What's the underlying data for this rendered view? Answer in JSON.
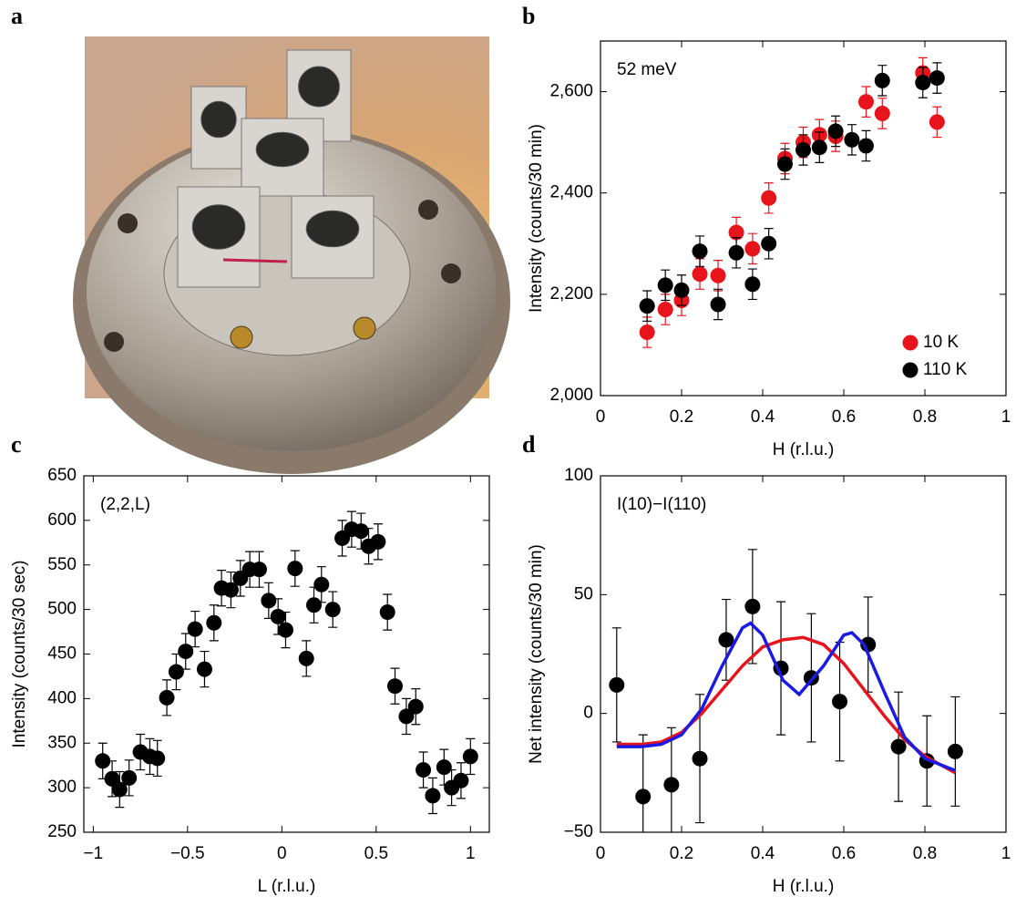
{
  "chart_data": [
    {
      "type": "image",
      "label": "a"
    },
    {
      "type": "scatter",
      "label": "b",
      "annotation": "52 meV",
      "xlabel": "H  (r.l.u.)",
      "ylabel": "Intensity (counts/30 min)",
      "xlim": [
        0,
        1
      ],
      "xticks": [
        0,
        0.2,
        0.4,
        0.6,
        0.8,
        1
      ],
      "ylim": [
        2000,
        2700
      ],
      "yticks": [
        {
          "value": 2000,
          "label": "2,000"
        },
        {
          "value": 2200,
          "label": "2,200"
        },
        {
          "value": 2400,
          "label": "2,400"
        },
        {
          "value": 2600,
          "label": "2,600"
        }
      ],
      "legend": "lower right",
      "series": [
        {
          "name": "10 K",
          "color": "#e8141b",
          "x": [
            0.115,
            0.16,
            0.2,
            0.245,
            0.29,
            0.335,
            0.375,
            0.415,
            0.455,
            0.5,
            0.54,
            0.58,
            0.655,
            0.695,
            0.795,
            0.83
          ],
          "values": [
            2125,
            2170,
            2188,
            2240,
            2237,
            2322,
            2290,
            2390,
            2468,
            2500,
            2515,
            2512,
            2580,
            2557,
            2637,
            2540
          ],
          "errors": [
            30,
            30,
            30,
            30,
            30,
            30,
            30,
            30,
            30,
            30,
            30,
            30,
            30,
            30,
            30,
            30
          ]
        },
        {
          "name": "110 K",
          "color": "#000000",
          "x": [
            0.115,
            0.16,
            0.2,
            0.245,
            0.29,
            0.335,
            0.375,
            0.415,
            0.455,
            0.5,
            0.54,
            0.58,
            0.62,
            0.655,
            0.695,
            0.795,
            0.83
          ],
          "values": [
            2177,
            2218,
            2208,
            2285,
            2180,
            2282,
            2220,
            2300,
            2457,
            2485,
            2490,
            2522,
            2505,
            2493,
            2622,
            2618,
            2627
          ],
          "errors": [
            30,
            30,
            30,
            30,
            30,
            30,
            30,
            30,
            30,
            30,
            30,
            30,
            30,
            30,
            30,
            30,
            30
          ]
        }
      ]
    },
    {
      "type": "scatter",
      "label": "c",
      "annotation": "(2,2,L)",
      "xlabel": "L    (r.l.u.)",
      "ylabel": "Intensity (counts/30 sec)",
      "xlim": [
        -1.05,
        1.1
      ],
      "xticks": [
        {
          "value": -1,
          "label": "−1"
        },
        {
          "value": -0.5,
          "label": "−0.5"
        },
        0,
        0.5,
        1
      ],
      "ylim": [
        250,
        650
      ],
      "yticks": [
        250,
        300,
        350,
        400,
        450,
        500,
        550,
        600,
        650
      ],
      "series": [
        {
          "color": "#000000",
          "x": [
            -0.95,
            -0.9,
            -0.86,
            -0.81,
            -0.75,
            -0.7,
            -0.66,
            -0.61,
            -0.56,
            -0.51,
            -0.46,
            -0.41,
            -0.36,
            -0.32,
            -0.27,
            -0.22,
            -0.17,
            -0.12,
            -0.07,
            -0.02,
            0.02,
            0.07,
            0.13,
            0.17,
            0.21,
            0.27,
            0.32,
            0.37,
            0.42,
            0.46,
            0.51,
            0.56,
            0.6,
            0.66,
            0.71,
            0.75,
            0.8,
            0.86,
            0.9,
            0.95,
            1.0
          ],
          "values": [
            330,
            310,
            298,
            311,
            340,
            335,
            333,
            401,
            430,
            453,
            478,
            433,
            485,
            524,
            522,
            535,
            545,
            545,
            510,
            492,
            477,
            546,
            445,
            505,
            528,
            500,
            580,
            590,
            588,
            571,
            576,
            497,
            414,
            380,
            391,
            320,
            291,
            323,
            300,
            308,
            335
          ],
          "errors": [
            20,
            20,
            20,
            20,
            20,
            20,
            20,
            20,
            20,
            20,
            20,
            20,
            20,
            20,
            20,
            20,
            20,
            20,
            20,
            20,
            20,
            20,
            20,
            20,
            20,
            20,
            20,
            20,
            20,
            20,
            20,
            20,
            20,
            20,
            20,
            20,
            20,
            20,
            20,
            20,
            20
          ]
        }
      ]
    },
    {
      "type": "scatter",
      "label": "d",
      "annotation": "I(10)−I(110)",
      "xlabel": "H  (r.l.u.)",
      "ylabel": "Net intensity (counts/30 min)",
      "xlim": [
        0,
        1
      ],
      "xticks": [
        0,
        0.2,
        0.4,
        0.6,
        0.8,
        1
      ],
      "ylim": [
        -50,
        100
      ],
      "yticks": [
        {
          "value": -50,
          "label": "−50"
        },
        0,
        50,
        100
      ],
      "series": [
        {
          "color": "#000000",
          "x": [
            0.04,
            0.105,
            0.175,
            0.245,
            0.31,
            0.375,
            0.445,
            0.52,
            0.59,
            0.66,
            0.735,
            0.805,
            0.875
          ],
          "values": [
            12,
            -35,
            -30,
            -19,
            31,
            45,
            19,
            15,
            5,
            29,
            -14,
            -20,
            -16
          ],
          "errors": [
            24,
            26,
            24,
            27,
            17,
            24,
            28,
            27,
            25,
            20,
            23,
            19,
            23
          ]
        },
        {
          "type": "line",
          "color": "#e8141b",
          "x": [
            0.04,
            0.1,
            0.15,
            0.2,
            0.25,
            0.3,
            0.35,
            0.4,
            0.45,
            0.5,
            0.55,
            0.6,
            0.65,
            0.7,
            0.75,
            0.8,
            0.875
          ],
          "values": [
            -13,
            -13,
            -12,
            -8,
            0,
            10,
            20,
            28,
            31,
            32,
            29,
            21,
            10,
            -1,
            -11,
            -18,
            -25
          ]
        },
        {
          "type": "line",
          "color": "#1a1ae6",
          "x": [
            0.04,
            0.1,
            0.15,
            0.2,
            0.25,
            0.3,
            0.35,
            0.37,
            0.4,
            0.45,
            0.49,
            0.55,
            0.6,
            0.62,
            0.65,
            0.7,
            0.75,
            0.8,
            0.875
          ],
          "values": [
            -14,
            -14,
            -13,
            -9,
            2,
            20,
            36,
            38,
            33,
            14,
            8,
            20,
            33,
            34,
            29,
            9,
            -10,
            -19,
            -24
          ]
        }
      ]
    }
  ]
}
